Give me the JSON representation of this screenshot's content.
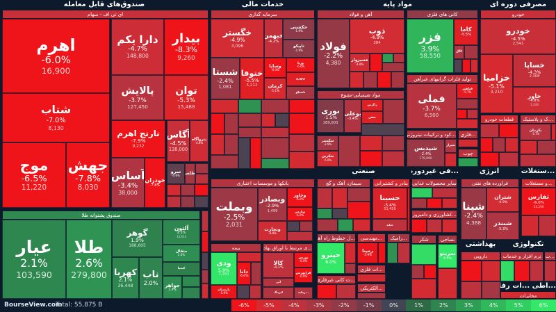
{
  "footer": {
    "brand": "BourseView.com",
    "total": "Total: 55,875 B"
  },
  "legend": {
    "labels": [
      "-6%",
      "-5%",
      "-4%",
      "-3%",
      "-2%",
      "-1%",
      "0%",
      "1%",
      "2%",
      "3%",
      "4%",
      "5%",
      "6%"
    ],
    "colors": [
      "#ee1419",
      "#d42b33",
      "#bd323d",
      "#a73643",
      "#923a48",
      "#743c4a",
      "#414554",
      "#2f6a47",
      "#2f844f",
      "#2f9e55",
      "#30b85b",
      "#31cf62",
      "#34e868"
    ]
  },
  "sectors": [
    {
      "title": "صندوق‌های قابل معامله",
      "groups": [
        {
          "title": "ای تی اف - سهام",
          "tiles": [
            {
              "name": "اهرم",
              "pct": "-6.0%",
              "value": "16,900"
            },
            {
              "name": "شتاب",
              "pct": "-7.0%",
              "value": "8,130"
            },
            {
              "name": "موج",
              "pct": "-6.5%",
              "value": "11,220"
            },
            {
              "name": "جهش",
              "pct": "-7.8%",
              "value": "8,030"
            },
            {
              "name": "دارا یکم",
              "pct": "-4.7%",
              "value": "148,800"
            },
            {
              "name": "بیدار",
              "pct": "-8.3%",
              "value": "9,260"
            },
            {
              "name": "پالایش",
              "pct": "-3.7%",
              "value": "127,450"
            },
            {
              "name": "توان",
              "pct": "-5.3%",
              "value": "15,488"
            },
            {
              "name": "نارنج اهرم",
              "pct": "-7.9%",
              "value": "9,232"
            },
            {
              "name": "آگاس",
              "pct": "-4.5%",
              "value": "138,000"
            },
            {
              "name": "پتروآگاه",
              "pct": "-4.8%"
            },
            {
              "name": "آساس",
              "pct": "-3.4%",
              "value": "38,000"
            },
            {
              "name": "خودران",
              "pct": "-7.8%"
            },
            {
              "name": "سرو",
              "pct": "-0.6%"
            },
            {
              "name": "اطلس"
            }
          ]
        },
        {
          "title": "صندوق پشتوانه طلا",
          "tiles": [
            {
              "name": "عیار",
              "pct": "2.1%",
              "value": "103,590"
            },
            {
              "name": "طلا",
              "pct": "2.6%",
              "value": "279,800"
            },
            {
              "name": "گوهر",
              "pct": "1.9%",
              "value": "188,605"
            },
            {
              "name": "آلتون",
              "pct": "2.1%",
              "value": "13,414"
            },
            {
              "name": "مثقال",
              "pct": "2.4%"
            },
            {
              "name": "کهربا",
              "pct": "2.1%",
              "value": "36,448"
            },
            {
              "name": "ناب",
              "pct": "2.0%"
            },
            {
              "name": "کیمیا"
            },
            {
              "name": "جواهر",
              "pct": "2.4%"
            }
          ]
        }
      ]
    },
    {
      "title": "خدمات مالی",
      "groups": [
        {
          "title": "سرمایه گذاری",
          "tiles": [
            {
              "name": "خگستر",
              "pct": "-4.9%",
              "value": "3,096"
            },
            {
              "name": "خبهمن",
              "pct": "-4.2%"
            },
            {
              "name": "حکشتی",
              "pct": "-1.9%"
            },
            {
              "name": "تاپیکو",
              "pct": "-1.9%"
            },
            {
              "name": "شستا",
              "pct": "-2.4%",
              "value": "1,081"
            },
            {
              "name": "ختوقا",
              "pct": "-5.5%",
              "value": "5,212"
            },
            {
              "name": "وساپا",
              "pct": "-6.0%"
            },
            {
              "name": "ورنا",
              "pct": "-6.0%"
            },
            {
              "name": "وبهرو"
            },
            {
              "name": "کرمان",
              "pct": "-5.1%"
            },
            {
              "name": "تاصیکو"
            }
          ]
        },
        {
          "title": "بانکها و موسسات اعتباری",
          "tiles": [
            {
              "name": "وبملت",
              "pct": "-2.5%",
              "value": "2,031"
            },
            {
              "name": "وبصادر",
              "pct": "-2.9%",
              "value": "1,499"
            },
            {
              "name": "وتجارت",
              "pct": "-4.8%"
            },
            {
              "name": "وخاور",
              "pct": "-6.0%"
            },
            {
              "name": "وپارس",
              "pct": "-6.0%"
            }
          ]
        },
        {
          "title": "بیمه",
          "tiles": [
            {
              "name": "ودی",
              "pct": "5.9%",
              "value": "7,250"
            },
            {
              "name": "دانا",
              "pct": "-6.0%"
            },
            {
              "name": "پارسیان",
              "pct": "-5.9%"
            }
          ]
        },
        {
          "title": "...ی مرتبط با اوراق بهادار",
          "tiles": [
            {
              "name": "کالا",
              "pct": "-4.1%"
            },
            {
              "name": "بورس",
              "pct": "-6.0%"
            },
            {
              "name": "فرابورس",
              "pct": "-6.0%"
            },
            {
              "name": "آتی"
            },
            {
              "name": "لیزینگ"
            },
            {
              "name": "...رمایه"
            }
          ]
        }
      ]
    },
    {
      "title": "مواد پایه",
      "groups": [
        {
          "title": "آهن و فولاد",
          "tiles": [
            {
              "name": "فولاد",
              "pct": "-2.2%",
              "value": "4,380"
            },
            {
              "name": "ذوب",
              "pct": "-4.9%",
              "value": "384"
            },
            {
              "name": "فسبزوار",
              "pct": "-4.8%"
            }
          ]
        },
        {
          "title": "مواد شیمیایی-متنوع",
          "tiles": [
            {
              "name": "نوری",
              "pct": "-1.5%",
              "value": "169,000"
            },
            {
              "name": "بوعلی",
              "pct": "-3.4%"
            },
            {
              "name": "زاگرس"
            },
            {
              "name": "شفن"
            },
            {
              "name": "شگستر",
              "pct": "-2.9%"
            },
            {
              "name": "شکربن",
              "pct": "-5.0%"
            }
          ]
        },
        {
          "title": "کانی های فلزی",
          "tiles": [
            {
              "name": "فزر",
              "pct": "3.9%",
              "value": "58,550"
            },
            {
              "name": "کاما",
              "pct": "-5.5%"
            },
            {
              "name": "کگل"
            }
          ]
        },
        {
          "title": "تولید فلزات گرانبهای غیرآهن",
          "tiles": [
            {
              "name": "فملی",
              "pct": "-3.7%",
              "value": "6,500"
            },
            {
              "name": "فباهنر",
              "pct": "-5.7%"
            }
          ]
        },
        {
          "title": "...کود و ترکیبات نیتروژنی",
          "tiles": [
            {
              "name": "شپدیس",
              "pct": "-2.4%",
              "value": "179,990"
            },
            {
              "name": "شیراز"
            }
          ]
        },
        {
          "title": "...فلزی",
          "tiles": []
        },
        {
          "title": "چوب",
          "tiles": []
        }
      ]
    },
    {
      "title": "مصرفی دوره ای",
      "groups": [
        {
          "title": "خودرو",
          "tiles": [
            {
              "name": "خودرو",
              "pct": "-4.5%",
              "value": "2,541"
            },
            {
              "name": "خزامیا",
              "pct": "-5.1%",
              "value": "3,210"
            },
            {
              "name": "خساپا",
              "pct": "-4.3%",
              "value": "2,308"
            },
            {
              "name": "خاور",
              "pct": "-4.8%",
              "value": "1,333"
            }
          ]
        },
        {
          "title": "قطعات خودرو",
          "tiles": []
        },
        {
          "title": "...ک و پلاستیک",
          "tiles": [
            {
              "name": "بکرمان",
              "pct": "-3.7%"
            }
          ]
        }
      ]
    },
    {
      "title": "صنعتی",
      "groups": [
        {
          "title": "سیمان، آهک و گچ",
          "tiles": []
        },
        {
          "title": "بنادر و کشتیرانی",
          "tiles": [
            {
              "name": "حسینا",
              "pct": "-5.4%",
              "value": "51,450"
            },
            {
              "name": "حتاید"
            }
          ]
        },
        {
          "title": "...ل خطوط راه آهن",
          "tiles": [
            {
              "name": "حپترو",
              "pct": "6.0%"
            }
          ]
        },
        {
          "title": "...مهندسی",
          "tiles": [
            {
              "name": "رمپنا",
              "pct": "-5.9%"
            }
          ]
        },
        {
          "title": "...رامیک",
          "tiles": []
        },
        {
          "title": "...ت کانی غیرفلزی",
          "tiles": []
        },
        {
          "title": "...ات فلزی",
          "tiles": []
        },
        {
          "title": "...الکتریکی",
          "tiles": []
        }
      ]
    },
    {
      "title": "...فی غیردوره ای",
      "groups": [
        {
          "title": "سایر محصولات غذایی",
          "tiles": []
        },
        {
          "title": "...کشاورزی و دامپروری",
          "tiles": []
        },
        {
          "title": "شکر",
          "tiles": []
        },
        {
          "title": "نساجی",
          "tiles": [
            {
              "name": "نمرینو",
              "pct": "6.0%"
            }
          ]
        }
      ]
    },
    {
      "title": "انرژی",
      "groups": [
        {
          "title": "فراورده های نفتی",
          "tiles": [
            {
              "name": "شپنا",
              "pct": "-2.4%",
              "value": "4,388"
            },
            {
              "name": "شتران",
              "pct": "-4.9%"
            },
            {
              "name": "شبندر",
              "pct": "-3.3%"
            }
          ]
        }
      ]
    },
    {
      "title": "...ستغلات",
      "groups": [
        {
          "title": "...و مستغلات",
          "tiles": [
            {
              "name": "ثفارس",
              "pct": "-6.0%",
              "value": "33,200"
            }
          ]
        }
      ]
    },
    {
      "title": "بهداشتی",
      "groups": [
        {
          "title": "دارویی",
          "tiles": []
        }
      ]
    },
    {
      "title": "تکنولوژی",
      "groups": [
        {
          "title": "نرم افزار و خدمات",
          "tiles": []
        },
        {
          "title": "...ت",
          "tiles": []
        }
      ]
    },
    {
      "title": "...اطی ...ات رفاهی",
      "groups": [
        {
          "title": "مخابرات",
          "tiles": []
        }
      ]
    }
  ]
}
